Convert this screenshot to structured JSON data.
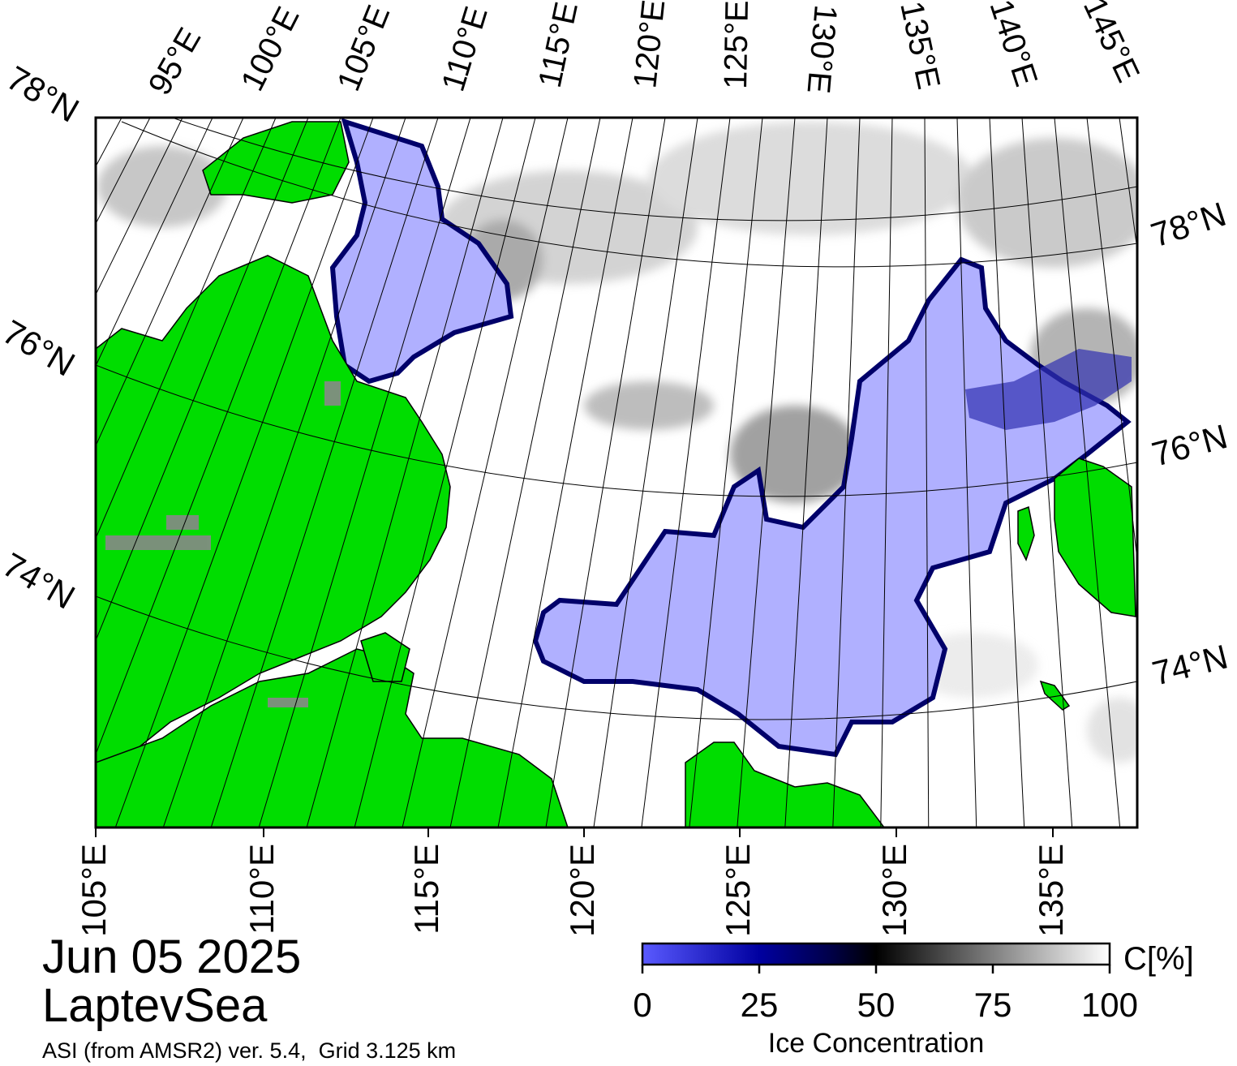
{
  "map": {
    "date": "Jun 05 2025",
    "region": "LaptevSea",
    "source": "ASI (from AMSR2) ver. 5.4,  Grid 3.125 km",
    "top_lon_labels": [
      "95°E",
      "100°E",
      "105°E",
      "110°E",
      "115°E",
      "120°E",
      "125°E",
      "130°E",
      "135°E",
      "140°E",
      "145°E"
    ],
    "bottom_lon_labels": [
      "105°E",
      "110°E",
      "115°E",
      "120°E",
      "125°E",
      "130°E",
      "135°E"
    ],
    "left_lat_labels": [
      "78°N",
      "76°N",
      "74°N"
    ],
    "right_lat_labels": [
      "78°N",
      "76°N",
      "74°N"
    ],
    "colors": {
      "land": "#00dd00",
      "open_water_low_conc": "#b0b0ff",
      "mid_conc": "#000040",
      "high_conc": "#ffffff",
      "coast_mask": "#888888"
    }
  },
  "colorbar": {
    "title": "Ice Concentration",
    "unit": "C[%]",
    "ticks": [
      "0",
      "25",
      "50",
      "75",
      "100"
    ],
    "stops": [
      "#5050ff",
      "#00004a",
      "#000000",
      "#888888",
      "#ffffff"
    ]
  }
}
